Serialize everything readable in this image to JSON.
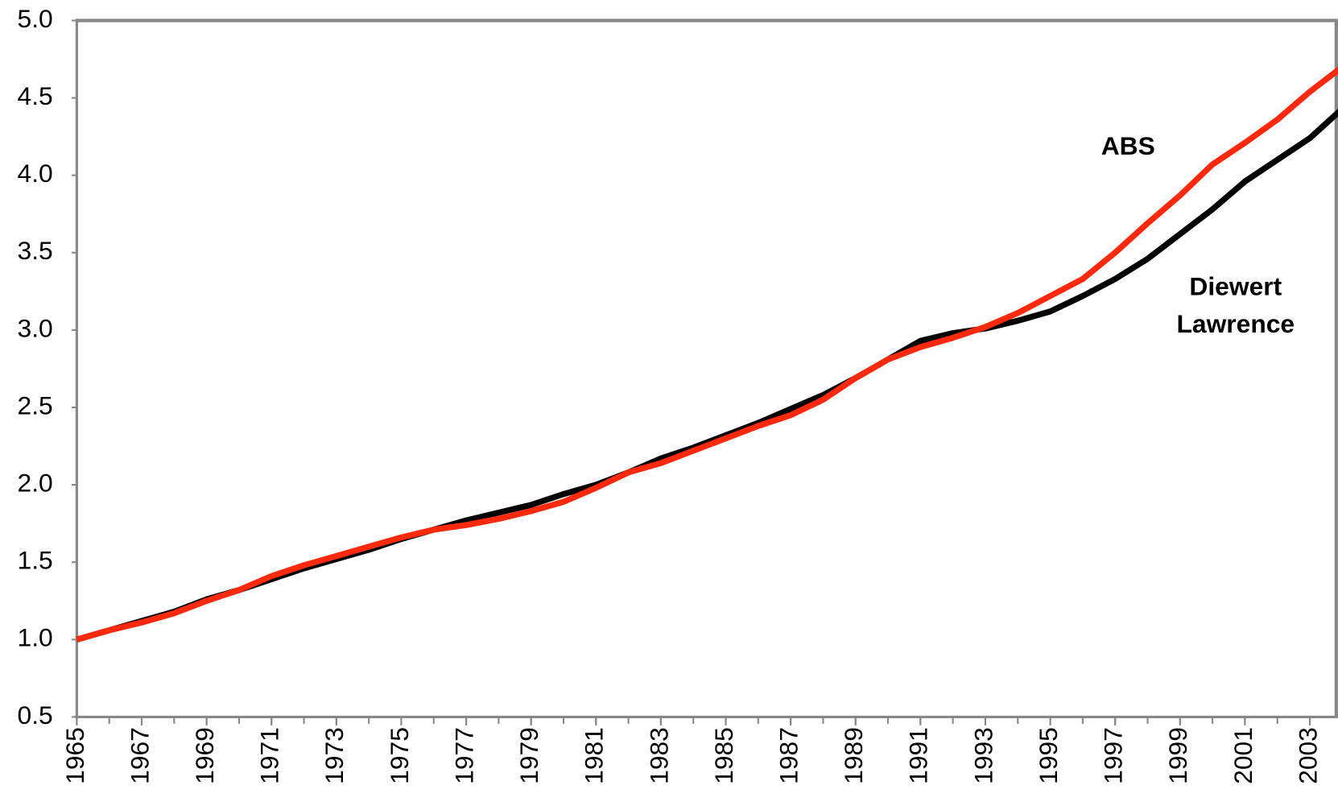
{
  "chart_data": {
    "type": "line",
    "x": [
      1965,
      1966,
      1967,
      1968,
      1969,
      1970,
      1971,
      1972,
      1973,
      1974,
      1975,
      1976,
      1977,
      1978,
      1979,
      1980,
      1981,
      1982,
      1983,
      1984,
      1985,
      1986,
      1987,
      1988,
      1989,
      1990,
      1991,
      1992,
      1993,
      1994,
      1995,
      1996,
      1997,
      1998,
      1999,
      2000,
      2001,
      2002,
      2003,
      2004
    ],
    "series": [
      {
        "name": "Diewert Lawrence",
        "color": "#000000",
        "values": [
          1.0,
          1.06,
          1.12,
          1.18,
          1.26,
          1.32,
          1.39,
          1.46,
          1.52,
          1.58,
          1.65,
          1.71,
          1.77,
          1.82,
          1.87,
          1.94,
          2.0,
          2.08,
          2.17,
          2.24,
          2.32,
          2.4,
          2.49,
          2.58,
          2.69,
          2.81,
          2.93,
          2.98,
          3.01,
          3.06,
          3.12,
          3.22,
          3.33,
          3.46,
          3.62,
          3.78,
          3.96,
          4.1,
          4.24,
          4.43
        ]
      },
      {
        "name": "ABS",
        "color": "#ff2a0e",
        "values": [
          1.0,
          1.06,
          1.11,
          1.17,
          1.25,
          1.32,
          1.41,
          1.48,
          1.54,
          1.6,
          1.66,
          1.71,
          1.74,
          1.78,
          1.83,
          1.89,
          1.98,
          2.08,
          2.14,
          2.22,
          2.3,
          2.38,
          2.45,
          2.55,
          2.69,
          2.81,
          2.89,
          2.95,
          3.02,
          3.11,
          3.22,
          3.33,
          3.5,
          3.69,
          3.87,
          4.07,
          4.21,
          4.36,
          4.54,
          4.7
        ]
      }
    ],
    "xlim": [
      1965,
      2004
    ],
    "xticks": [
      1965,
      1967,
      1969,
      1971,
      1973,
      1975,
      1977,
      1979,
      1981,
      1983,
      1985,
      1987,
      1989,
      1991,
      1993,
      1995,
      1997,
      1999,
      2001,
      2003
    ],
    "ylim": [
      0.5,
      5.0
    ],
    "yticks": [
      {
        "value": 0.5,
        "label": "0.5"
      },
      {
        "value": 1.0,
        "label": "1.0"
      },
      {
        "value": 1.5,
        "label": "1.5"
      },
      {
        "value": 2.0,
        "label": "2.0"
      },
      {
        "value": 2.5,
        "label": "2.5"
      },
      {
        "value": 3.0,
        "label": "3.0"
      },
      {
        "value": 3.5,
        "label": "3.5"
      },
      {
        "value": 4.0,
        "label": "4.0"
      },
      {
        "value": 4.5,
        "label": "4.5"
      },
      {
        "value": 5.0,
        "label": "5.0"
      }
    ],
    "grid": false
  }
}
